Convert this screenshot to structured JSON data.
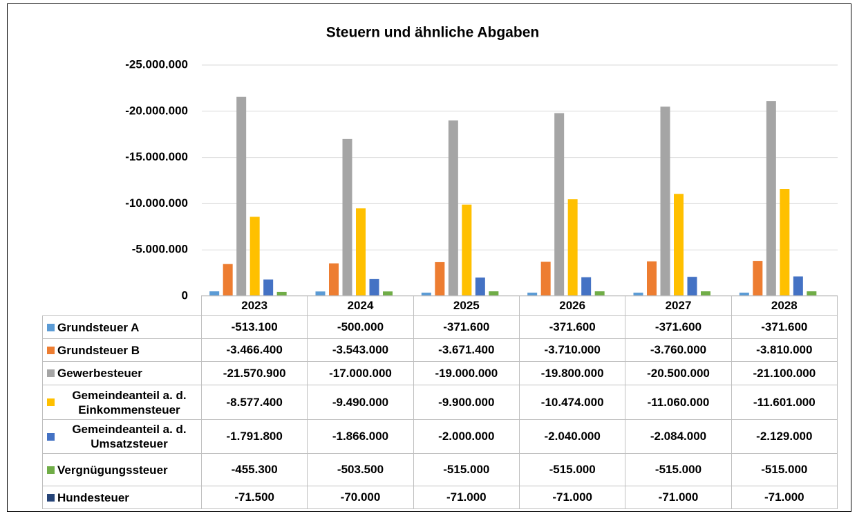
{
  "chart_data": {
    "type": "bar",
    "title": "Steuern und ähnliche Abgaben",
    "categories": [
      "2023",
      "2024",
      "2025",
      "2026",
      "2027",
      "2028"
    ],
    "ylim": [
      0,
      -25000000
    ],
    "yticks": [
      0,
      {
        "value": -5000000,
        "label": "-5.000.000"
      },
      {
        "value": -10000000,
        "label": "-10.000.000"
      },
      {
        "value": -15000000,
        "label": "-15.000.000"
      },
      {
        "value": -20000000,
        "label": "-20.000.000"
      },
      {
        "value": -25000000,
        "label": "-25.000.000"
      }
    ],
    "grid": true,
    "series": [
      {
        "name": "Grundsteuer A",
        "color": "#5b9bd5",
        "values": [
          -513100,
          -500000,
          -371600,
          -371600,
          -371600,
          -371600
        ],
        "value_labels": [
          "-513.100",
          "-500.000",
          "-371.600",
          "-371.600",
          "-371.600",
          "-371.600"
        ]
      },
      {
        "name": "Grundsteuer B",
        "color": "#ed7d31",
        "values": [
          -3466400,
          -3543000,
          -3671400,
          -3710000,
          -3760000,
          -3810000
        ],
        "value_labels": [
          "-3.466.400",
          "-3.543.000",
          "-3.671.400",
          "-3.710.000",
          "-3.760.000",
          "-3.810.000"
        ]
      },
      {
        "name": "Gewerbesteuer",
        "color": "#a5a5a5",
        "values": [
          -21570900,
          -17000000,
          -19000000,
          -19800000,
          -20500000,
          -21100000
        ],
        "value_labels": [
          "-21.570.900",
          "-17.000.000",
          "-19.000.000",
          "-19.800.000",
          "-20.500.000",
          "-21.100.000"
        ]
      },
      {
        "name": "Gemeindeanteil a. d. Einkommensteuer",
        "color": "#ffc000",
        "values": [
          -8577400,
          -9490000,
          -9900000,
          -10474000,
          -11060000,
          -11601000
        ],
        "value_labels": [
          "-8.577.400",
          "-9.490.000",
          "-9.900.000",
          "-10.474.000",
          "-11.060.000",
          "-11.601.000"
        ]
      },
      {
        "name": "Gemeindeanteil a. d. Umsatzsteuer",
        "color": "#4472c4",
        "values": [
          -1791800,
          -1866000,
          -2000000,
          -2040000,
          -2084000,
          -2129000
        ],
        "value_labels": [
          "-1.791.800",
          "-1.866.000",
          "-2.000.000",
          "-2.040.000",
          "-2.084.000",
          "-2.129.000"
        ]
      },
      {
        "name": "Vergnügungssteuer",
        "color": "#70ad47",
        "values": [
          -455300,
          -503500,
          -515000,
          -515000,
          -515000,
          -515000
        ],
        "value_labels": [
          "-455.300",
          "-503.500",
          "-515.000",
          "-515.000",
          "-515.000",
          "-515.000"
        ]
      },
      {
        "name": "Hundesteuer",
        "color": "#264478",
        "values": [
          -71500,
          -70000,
          -71000,
          -71000,
          -71000,
          -71000
        ],
        "value_labels": [
          "-71.500",
          "-70.000",
          "-71.000",
          "-71.000",
          "-71.000",
          "-71.000"
        ]
      }
    ]
  }
}
